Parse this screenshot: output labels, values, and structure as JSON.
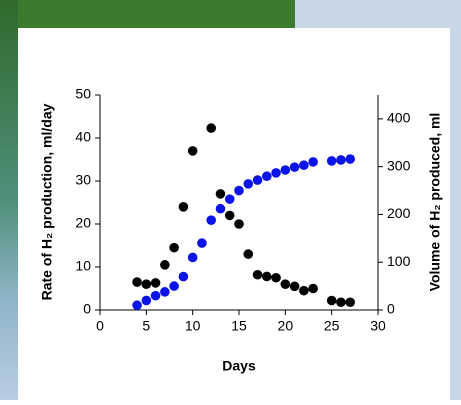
{
  "chart_data": {
    "type": "scatter",
    "xlabel": "Days",
    "ylabel": "Rate of H₂ production, ml/day",
    "y2label": "Volume of H₂ produced, ml",
    "xlim": [
      0,
      30
    ],
    "xticks": [
      0,
      5,
      10,
      15,
      20,
      25,
      30
    ],
    "ylim": [
      0,
      50
    ],
    "yticks": [
      0,
      10,
      20,
      30,
      40,
      50
    ],
    "y2lim": [
      0,
      450
    ],
    "y2ticks": [
      0,
      100,
      200,
      300,
      400
    ],
    "grid": false,
    "series": [
      {
        "color": "#000000",
        "x": [
          4,
          5,
          6,
          7,
          8,
          9,
          10,
          12,
          13,
          14,
          15,
          16,
          17,
          18,
          19,
          20,
          21,
          22,
          23,
          25,
          26,
          27
        ],
        "values": [
          6.5,
          6,
          6.3,
          10.5,
          14.5,
          24,
          37,
          42.3,
          27,
          22,
          20,
          13,
          8.2,
          7.8,
          7.5,
          6,
          5.5,
          4.5,
          5,
          2.2,
          1.8,
          1.8
        ]
      },
      {
        "color": "#0a14e6",
        "axis": "y2",
        "x": [
          4,
          5,
          6,
          7,
          8,
          9,
          10,
          11,
          12,
          13,
          14,
          15,
          16,
          17,
          18,
          19,
          20,
          21,
          22,
          23,
          25,
          26,
          27
        ],
        "values": [
          10,
          20,
          30,
          38,
          50,
          70,
          110,
          140,
          188,
          212,
          232,
          250,
          264,
          272,
          280,
          287,
          293,
          299,
          303,
          310,
          312,
          314,
          316
        ]
      }
    ]
  }
}
